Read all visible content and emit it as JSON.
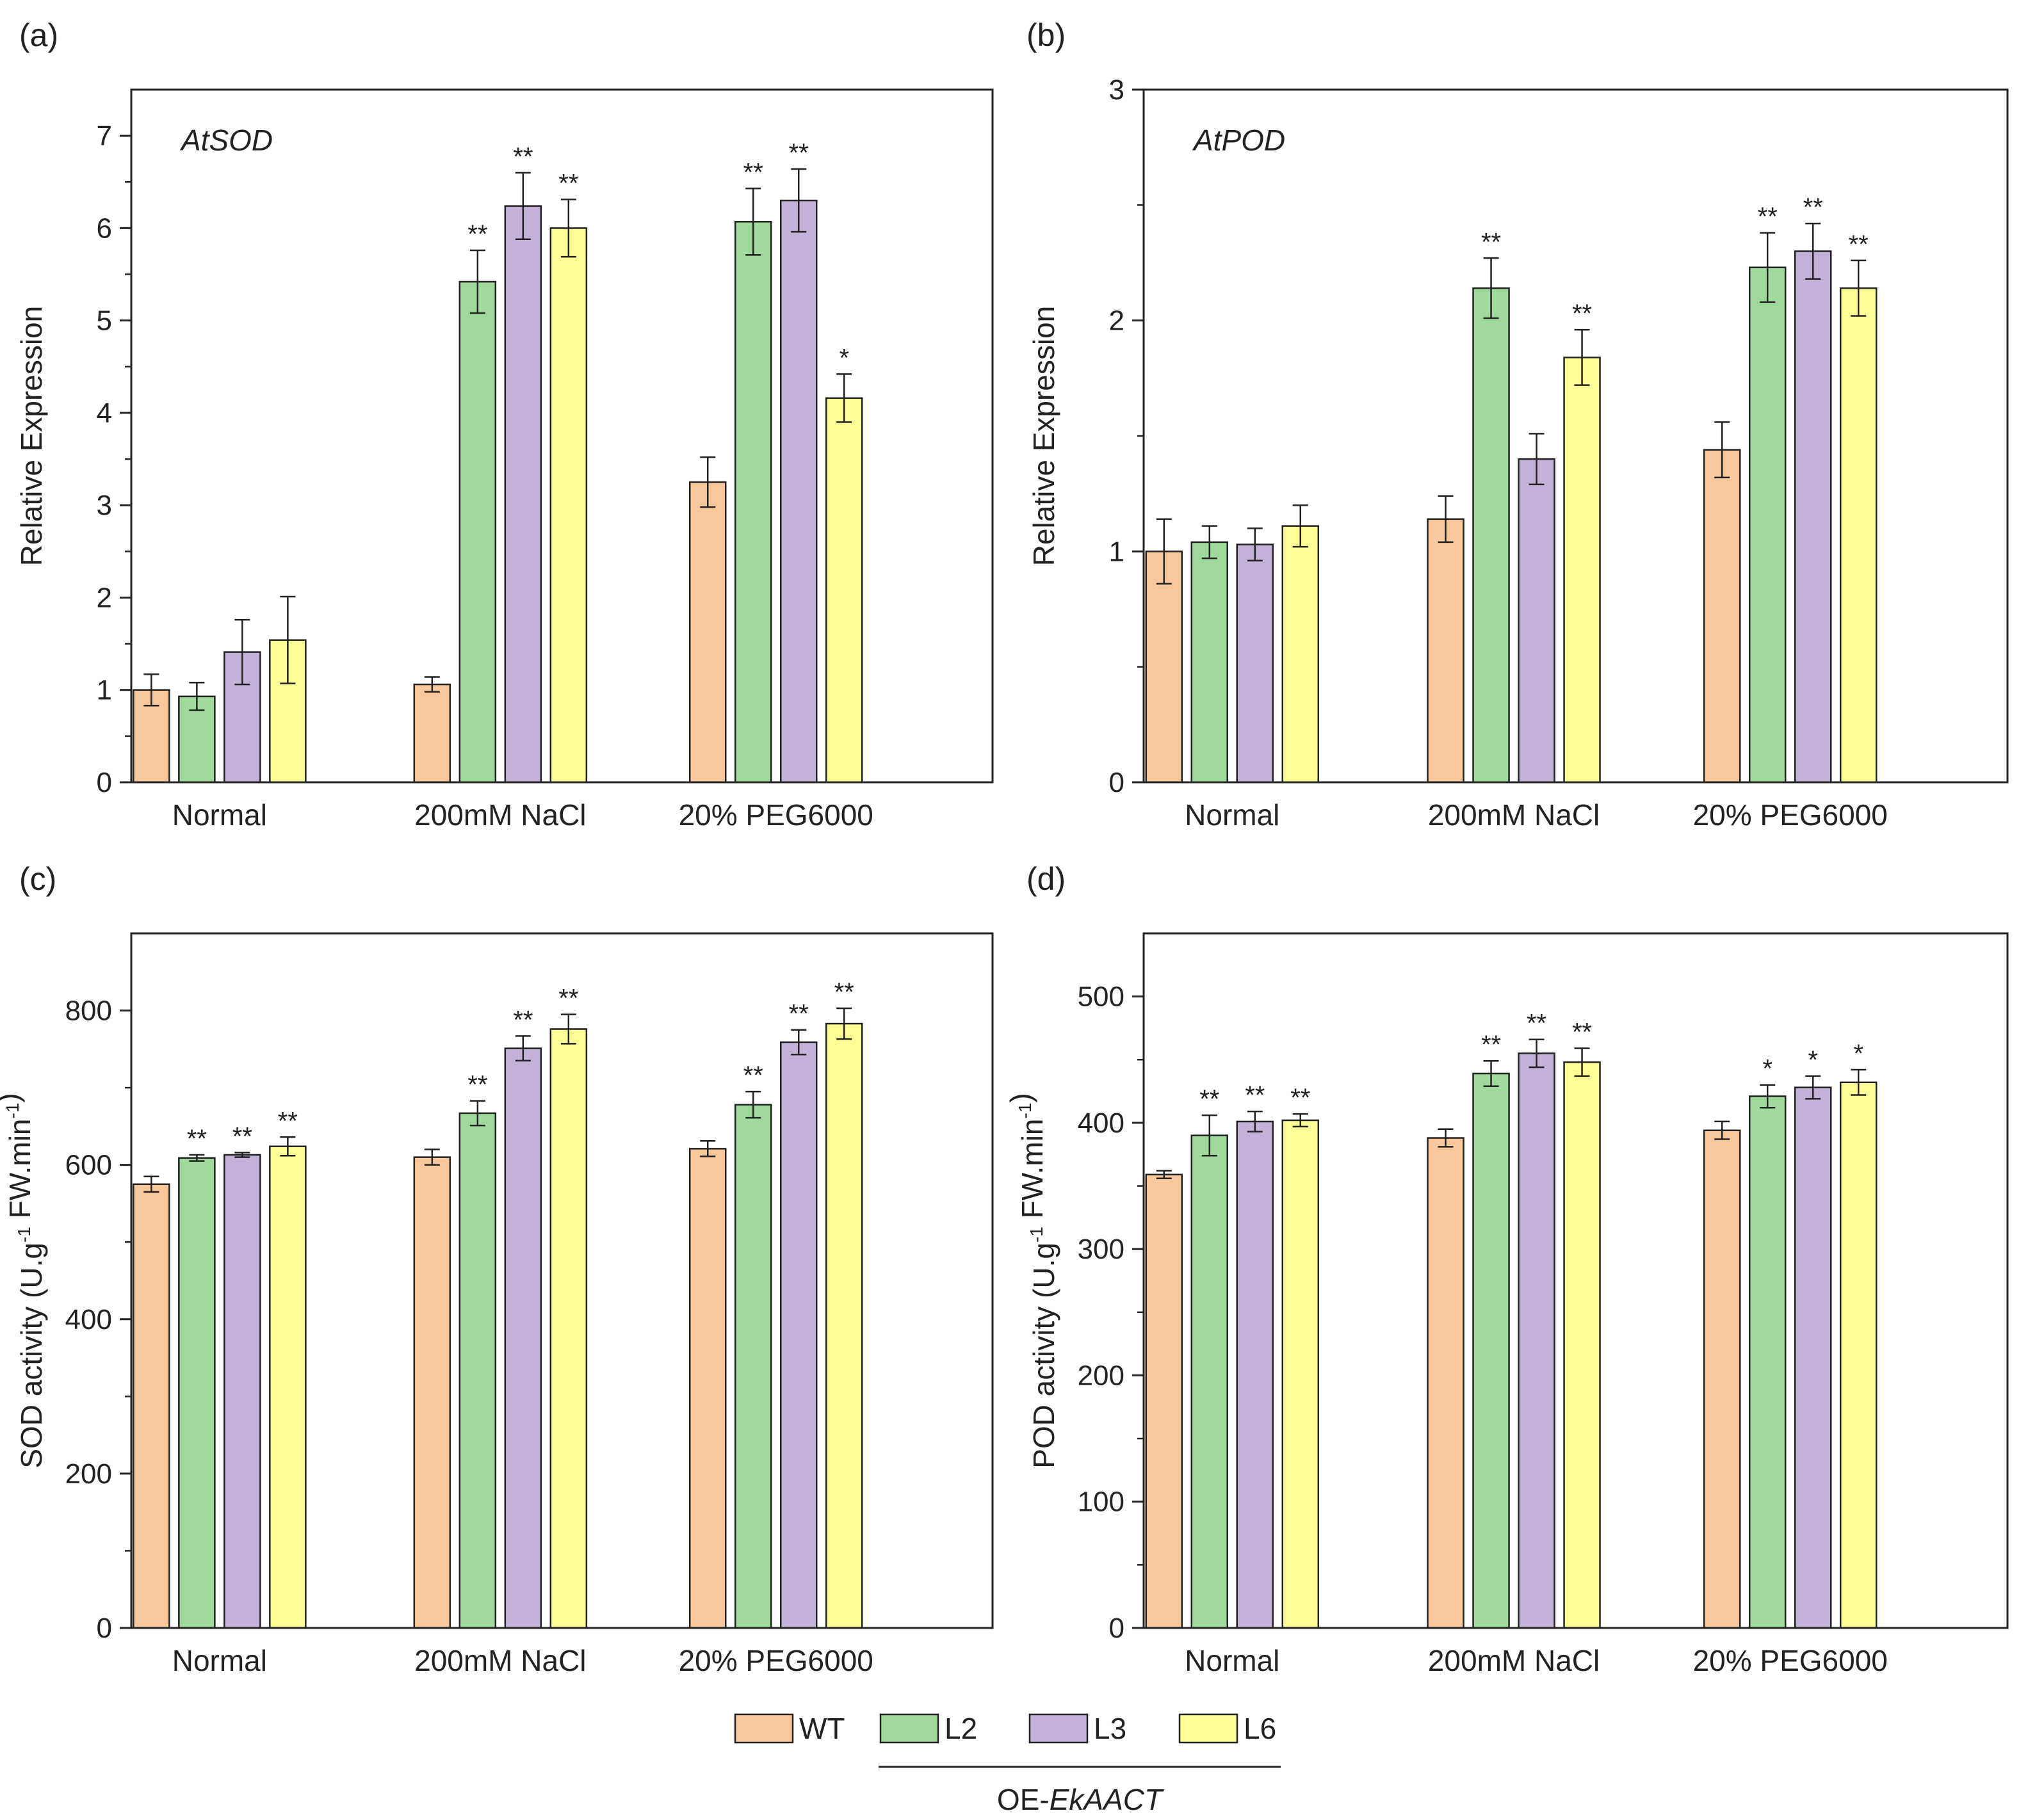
{
  "colors": {
    "WT": "#f8c79b",
    "L2": "#9fd99b",
    "L3": "#c3b1d8",
    "L6": "#fdfd96",
    "stroke": "#222222"
  },
  "legend": {
    "items": [
      {
        "key": "WT",
        "label": "WT"
      },
      {
        "key": "L2",
        "label": "L2"
      },
      {
        "key": "L3",
        "label": "L3"
      },
      {
        "key": "L6",
        "label": "L6"
      }
    ],
    "group_prefix": "OE-",
    "group_gene": "EkAACT"
  },
  "chart_data": [
    {
      "type": "bar",
      "panel": "(a)",
      "annotation": "AtSOD",
      "xlabel": "",
      "ylabel": "Relative Expression",
      "ylabel_sup": "",
      "ylabel_end": "",
      "ylim": [
        0,
        7.5
      ],
      "yticks": [
        0,
        1,
        2,
        3,
        4,
        5,
        6,
        7
      ],
      "categories": [
        "Normal",
        "200mM NaCl",
        "20% PEG6000"
      ],
      "series": [
        {
          "name": "WT",
          "values": [
            1.0,
            1.06,
            3.25
          ],
          "errors": [
            0.17,
            0.08,
            0.27
          ],
          "sig": [
            "",
            "",
            ""
          ]
        },
        {
          "name": "L2",
          "values": [
            0.93,
            5.42,
            6.07
          ],
          "errors": [
            0.15,
            0.34,
            0.36
          ],
          "sig": [
            "",
            "**",
            "**"
          ]
        },
        {
          "name": "L3",
          "values": [
            1.41,
            6.24,
            6.3
          ],
          "errors": [
            0.35,
            0.36,
            0.34
          ],
          "sig": [
            "",
            "**",
            "**"
          ]
        },
        {
          "name": "L6",
          "values": [
            1.54,
            6.0,
            4.16
          ],
          "errors": [
            0.47,
            0.31,
            0.26
          ],
          "sig": [
            "",
            "**",
            "*"
          ]
        }
      ]
    },
    {
      "type": "bar",
      "panel": "(b)",
      "annotation": "AtPOD",
      "xlabel": "",
      "ylabel": "Relative Expression",
      "ylabel_sup": "",
      "ylabel_end": "",
      "ylim": [
        0,
        3
      ],
      "yticks": [
        0,
        1,
        2,
        3
      ],
      "categories": [
        "Normal",
        "200mM NaCl",
        "20% PEG6000"
      ],
      "series": [
        {
          "name": "WT",
          "values": [
            1.0,
            1.14,
            1.44
          ],
          "errors": [
            0.14,
            0.1,
            0.12
          ],
          "sig": [
            "",
            "",
            ""
          ]
        },
        {
          "name": "L2",
          "values": [
            1.04,
            2.14,
            2.23
          ],
          "errors": [
            0.07,
            0.13,
            0.15
          ],
          "sig": [
            "",
            "**",
            "**"
          ]
        },
        {
          "name": "L3",
          "values": [
            1.03,
            1.4,
            2.3
          ],
          "errors": [
            0.07,
            0.11,
            0.12
          ],
          "sig": [
            "",
            "",
            "**"
          ]
        },
        {
          "name": "L6",
          "values": [
            1.11,
            1.84,
            2.14
          ],
          "errors": [
            0.09,
            0.12,
            0.12
          ],
          "sig": [
            "",
            "**",
            "**"
          ]
        }
      ]
    },
    {
      "type": "bar",
      "panel": "(c)",
      "annotation": "",
      "xlabel": "",
      "ylabel": "SOD activity (U.g",
      "ylabel_sup": "-1",
      "ylabel_end": " FW.min",
      "ylabel_sup2": "-1",
      "ylabel_close": ")",
      "ylim": [
        0,
        900
      ],
      "yticks": [
        0,
        200,
        400,
        600,
        800
      ],
      "categories": [
        "Normal",
        "200mM NaCl",
        "20% PEG6000"
      ],
      "series": [
        {
          "name": "WT",
          "values": [
            575,
            610,
            621
          ],
          "errors": [
            10,
            10,
            10
          ],
          "sig": [
            "",
            "",
            ""
          ]
        },
        {
          "name": "L2",
          "values": [
            609,
            667,
            678
          ],
          "errors": [
            4,
            16,
            17
          ],
          "sig": [
            "**",
            "**",
            "**"
          ]
        },
        {
          "name": "L3",
          "values": [
            613,
            751,
            759
          ],
          "errors": [
            3,
            16,
            16
          ],
          "sig": [
            "**",
            "**",
            "**"
          ]
        },
        {
          "name": "L6",
          "values": [
            624,
            776,
            783
          ],
          "errors": [
            12,
            19,
            20
          ],
          "sig": [
            "**",
            "**",
            "**"
          ]
        }
      ]
    },
    {
      "type": "bar",
      "panel": "(d)",
      "annotation": "",
      "xlabel": "",
      "ylabel": "POD activity (U.g",
      "ylabel_sup": "-1",
      "ylabel_end": " FW.min",
      "ylabel_sup2": "-1",
      "ylabel_close": ")",
      "ylim": [
        0,
        550
      ],
      "yticks": [
        0,
        100,
        200,
        300,
        400,
        500
      ],
      "categories": [
        "Normal",
        "200mM NaCl",
        "20% PEG6000"
      ],
      "series": [
        {
          "name": "WT",
          "values": [
            359,
            388,
            394
          ],
          "errors": [
            3,
            7,
            7
          ],
          "sig": [
            "",
            "",
            ""
          ]
        },
        {
          "name": "L2",
          "values": [
            390,
            439,
            421
          ],
          "errors": [
            16,
            10,
            9
          ],
          "sig": [
            "**",
            "**",
            "*"
          ]
        },
        {
          "name": "L3",
          "values": [
            401,
            455,
            428
          ],
          "errors": [
            8,
            11,
            9
          ],
          "sig": [
            "**",
            "**",
            "*"
          ]
        },
        {
          "name": "L6",
          "values": [
            402,
            448,
            432
          ],
          "errors": [
            5,
            11,
            10
          ],
          "sig": [
            "**",
            "**",
            "*"
          ]
        }
      ]
    }
  ]
}
